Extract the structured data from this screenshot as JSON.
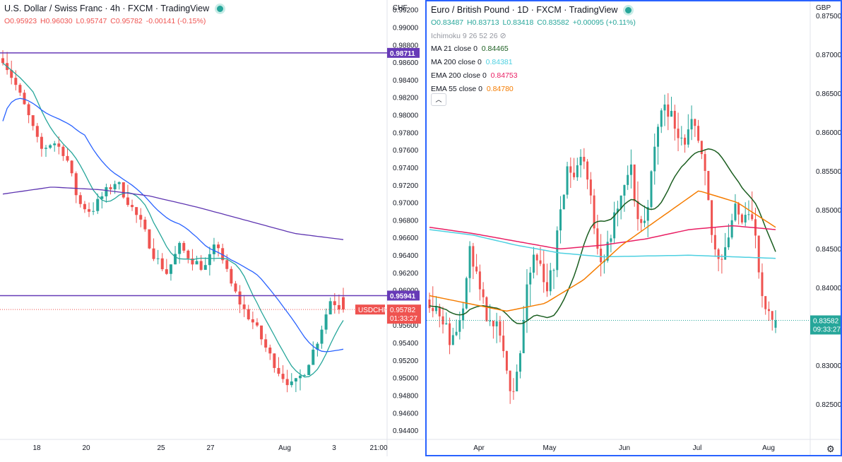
{
  "colors": {
    "up": "#26a69a",
    "down": "#ef5350",
    "ma_green": "#1b5e20",
    "ma_cyan": "#4dd0e1",
    "ema_red": "#e91e63",
    "ema_orange": "#f57c00",
    "line_purple": "#673ab7",
    "ma_teal": "#26a69a",
    "ma_blue": "#2962ff",
    "ma_violet": "#5e35b1"
  },
  "left_chart": {
    "title": "U.S. Dollar / Swiss Franc · 4h · FXCM · TradingView",
    "ohlc": {
      "o": "O0.95923",
      "h": "H0.96030",
      "l": "L0.95747",
      "c": "C0.95782",
      "chg": "-0.00141 (-0.15%)"
    },
    "currency": "CHF",
    "price_ticks": [
      "0.99200",
      "0.99000",
      "0.98800",
      "0.98600",
      "0.98400",
      "0.98200",
      "0.98000",
      "0.97800",
      "0.97600",
      "0.97400",
      "0.97200",
      "0.97000",
      "0.96800",
      "0.96600",
      "0.96400",
      "0.96200",
      "0.96000",
      "0.95800",
      "0.95600",
      "0.95400",
      "0.95200",
      "0.95000",
      "0.94800",
      "0.94600",
      "0.94400"
    ],
    "time_ticks": [
      "18",
      "20",
      "25",
      "27",
      "Aug",
      "3",
      "21:00"
    ],
    "level_labels": [
      "0.98711",
      "0.95941"
    ],
    "price_label": "0.95782",
    "countdown": "01:33:27",
    "symbol_tag": "USDCHF"
  },
  "right_chart": {
    "title": "Euro / British Pound · 1D · FXCM · TradingView",
    "ohlc": {
      "o": "O0.83487",
      "h": "H0.83713",
      "l": "L0.83418",
      "c": "C0.83582",
      "chg": "+0.00095 (+0.11%)"
    },
    "ichimoku": "Ichimoku 9 26 52 26",
    "indicators": [
      {
        "name": "MA 21 close 0",
        "value": "0.84465"
      },
      {
        "name": "MA 200 close 0",
        "value": "0.84381"
      },
      {
        "name": "EMA 200 close 0",
        "value": "0.84753"
      },
      {
        "name": "EMA 55 close 0",
        "value": "0.84780"
      }
    ],
    "currency": "GBP",
    "price_ticks": [
      "0.87500",
      "0.87000",
      "0.86500",
      "0.86000",
      "0.85500",
      "0.85000",
      "0.84500",
      "0.84000",
      "0.83500",
      "0.83000",
      "0.82500"
    ],
    "time_ticks": [
      "Apr",
      "May",
      "Jun",
      "Jul",
      "Aug"
    ],
    "price_label": "0.83582",
    "countdown": "09:33:27",
    "collapse_icon": "chevron-up-icon",
    "settings_icon": "gear-icon"
  },
  "chart_data": [
    {
      "type": "candlestick",
      "title": "",
      "ylim": [
        0.943,
        0.9925
      ],
      "lines": [
        {
          "name": "",
          "value": 0.98711
        },
        {
          "name": "",
          "value": 0.95941
        }
      ],
      "last": 0.95782
    },
    {
      "type": "candlestick",
      "title": "",
      "ylim": [
        0.8205,
        0.8765
      ],
      "ma21": 0.84465,
      "ma200": 0.84381,
      "ema200": 0.84753,
      "ema55": 0.8478,
      "last": 0.83582
    }
  ]
}
